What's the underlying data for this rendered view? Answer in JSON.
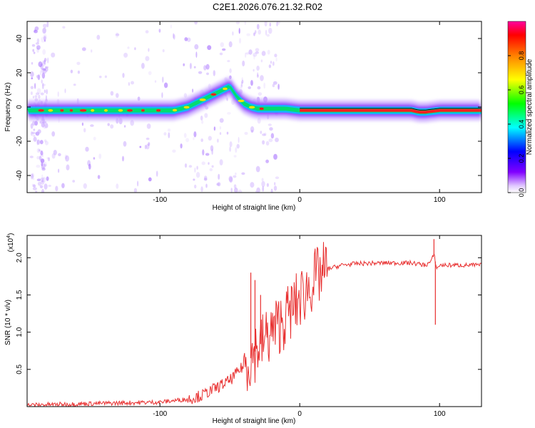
{
  "title": "C2E1.2026.076.21.32.R02",
  "chart_data": [
    {
      "type": "heatmap",
      "name": "spectrogram",
      "xlabel": "Height of straight line (km)",
      "ylabel": "Frequency (Hz)",
      "xlim": [
        -195,
        130
      ],
      "ylim": [
        -50,
        50
      ],
      "xticks": [
        -100,
        0,
        100
      ],
      "yticks": [
        -40,
        -20,
        0,
        20,
        40
      ],
      "colorbar": {
        "label": "Normalized spectral amplitude",
        "range": [
          0,
          1
        ],
        "ticks": [
          "0.0",
          "0.2",
          "0.4",
          "0.6",
          "0.8"
        ],
        "colors": [
          "#ffffff",
          "#e0c8ff",
          "#8000ff",
          "#0000ff",
          "#00ffff",
          "#00ff00",
          "#ffff00",
          "#ff8000",
          "#ff0000",
          "#ff00a0"
        ]
      },
      "ridge": {
        "x": [
          -190,
          -150,
          -120,
          -100,
          -90,
          -80,
          -70,
          -60,
          -55,
          -50,
          -45,
          -40,
          -35,
          -30,
          -20,
          -10,
          0,
          20,
          50,
          70,
          80,
          85,
          90,
          100,
          130
        ],
        "y": [
          -2,
          -2,
          -2,
          -2,
          -2,
          0,
          4,
          8,
          10,
          12,
          6,
          2,
          0,
          -1,
          -1,
          -1,
          -2,
          -2,
          -2,
          -2,
          -2,
          -3,
          -3,
          -2,
          -2
        ]
      }
    },
    {
      "type": "line",
      "name": "snr",
      "xlabel": "Height of straight line (km)",
      "ylabel": "SNR (10 * v/v)",
      "scale_label": "(x10",
      "scale_exp": "4",
      "xlim": [
        -195,
        130
      ],
      "ylim": [
        0,
        2.3
      ],
      "xticks": [
        -100,
        0,
        100
      ],
      "yticks": [
        0.5,
        1.0,
        1.5,
        2.0
      ],
      "ytick_labels": [
        "0.5",
        "1.0",
        "1.5",
        "2.0"
      ],
      "color": "#e83030",
      "envelope": {
        "x": [
          -195,
          -150,
          -100,
          -80,
          -70,
          -60,
          -50,
          -45,
          -40,
          -35,
          -30,
          -20,
          -10,
          0,
          10,
          20,
          30,
          40,
          60,
          80,
          90,
          94,
          96,
          98,
          100,
          110,
          130
        ],
        "y": [
          0.02,
          0.04,
          0.06,
          0.1,
          0.15,
          0.25,
          0.35,
          0.45,
          0.55,
          0.65,
          0.8,
          1.0,
          1.2,
          1.45,
          1.7,
          1.85,
          1.9,
          1.92,
          1.93,
          1.93,
          1.9,
          1.95,
          2.05,
          1.85,
          1.9,
          1.9,
          1.9
        ]
      },
      "spikes": [
        {
          "x": -35,
          "y": 1.8
        },
        {
          "x": -32,
          "y": 1.7
        },
        {
          "x": -28,
          "y": 1.5
        },
        {
          "x": 96,
          "y": 2.25
        },
        {
          "x": 97,
          "y": 1.1
        }
      ]
    }
  ]
}
